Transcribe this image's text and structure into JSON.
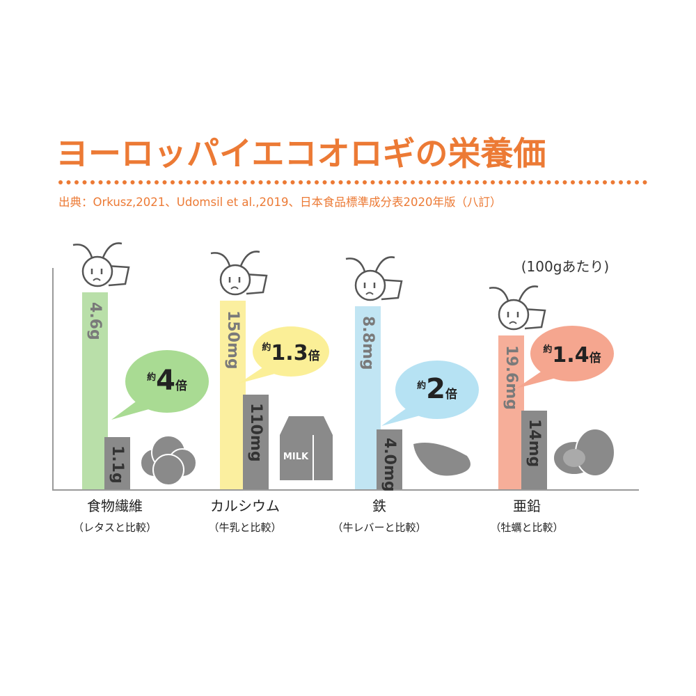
{
  "header": {
    "title": "ヨーロッパイエコオロギの栄養価",
    "source": "出典：Orkusz,2021、Udomsil et al.,2019、日本食品標準成分表2020年版（八訂）",
    "unit_note": "(100gあたり)"
  },
  "groups": [
    {
      "name": "食物繊維",
      "compare": "（レタスと比較）",
      "cricket_label": "4.6g",
      "other_label": "1.1g",
      "ratio_prefix": "約",
      "ratio": "4",
      "ratio_suffix": "倍",
      "bar_color": "#b9dfa9",
      "bubble_color": "#a9db93"
    },
    {
      "name": "カルシウム",
      "compare": "（牛乳と比較）",
      "cricket_label": "150mg",
      "other_label": "110mg",
      "ratio_prefix": "約",
      "ratio": "1.3",
      "ratio_suffix": "倍",
      "bar_color": "#fbef9f",
      "bubble_color": "#fbef97"
    },
    {
      "name": "鉄",
      "compare": "（牛レバーと比較）",
      "cricket_label": "8.8mg",
      "other_label": "4.0mg",
      "ratio_prefix": "約",
      "ratio": "2",
      "ratio_suffix": "倍",
      "bar_color": "#c1e5f3",
      "bubble_color": "#b6e2f3"
    },
    {
      "name": "亜鉛",
      "compare": "（牡蠣と比較）",
      "cricket_label": "19.6mg",
      "other_label": "14mg",
      "ratio_prefix": "約",
      "ratio": "1.4",
      "ratio_suffix": "倍",
      "bar_color": "#f6ae99",
      "bubble_color": "#f5a68f"
    }
  ]
}
